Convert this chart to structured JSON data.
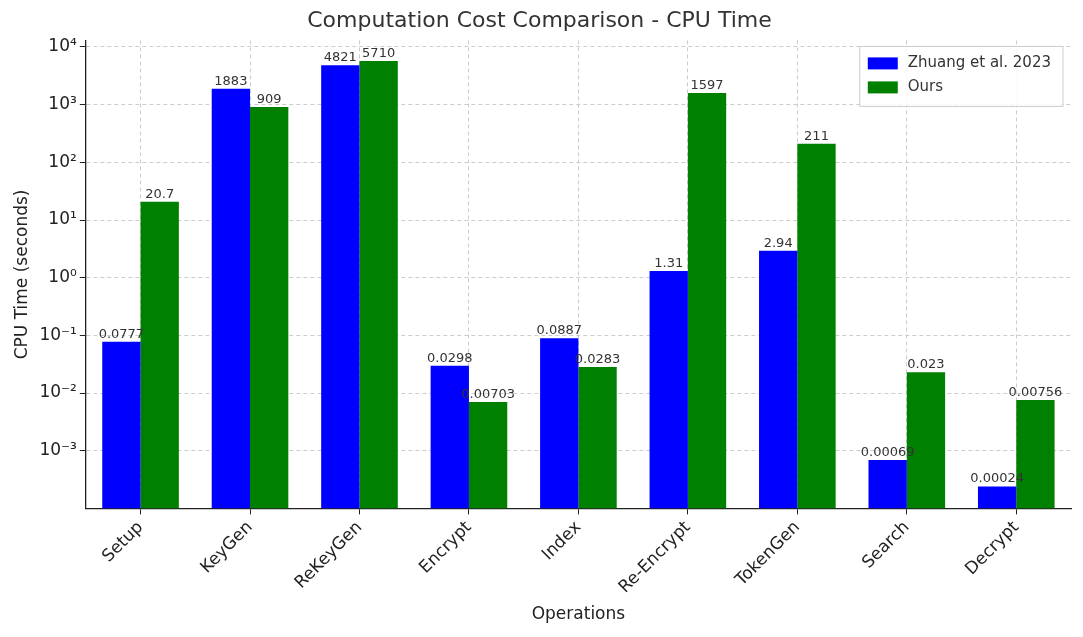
{
  "chart_data": {
    "type": "bar",
    "title": "Computation Cost Comparison - CPU Time",
    "xlabel": "Operations",
    "ylabel": "CPU Time (seconds)",
    "categories": [
      "Setup",
      "KeyGen",
      "ReKeyGen",
      "Encrypt",
      "Index",
      "Re-Encrypt",
      "TokenGen",
      "Search",
      "Decrypt"
    ],
    "series": [
      {
        "name": "Zhuang et al. 2023",
        "color": "#0000ff",
        "values": [
          0.0777,
          1883,
          4821,
          0.0298,
          0.0887,
          1.31,
          2.94,
          0.00069,
          0.00024
        ]
      },
      {
        "name": "Ours",
        "color": "#008000",
        "values": [
          20.7,
          909,
          5710,
          0.00703,
          0.0283,
          1597,
          211,
          0.023,
          0.00756
        ]
      }
    ],
    "log": "y",
    "ylim": [
      0.0001,
      13000
    ],
    "yticks": [
      {
        "value": 0.001,
        "label": "10⁻³"
      },
      {
        "value": 0.01,
        "label": "10⁻²"
      },
      {
        "value": 0.1,
        "label": "10⁻¹"
      },
      {
        "value": 1,
        "label": "10⁰"
      },
      {
        "value": 10,
        "label": "10¹"
      },
      {
        "value": 100,
        "label": "10²"
      },
      {
        "value": 1000,
        "label": "10³"
      },
      {
        "value": 10000,
        "label": "10⁴"
      }
    ],
    "grid": true,
    "legend": "top right",
    "data_labels": true
  }
}
